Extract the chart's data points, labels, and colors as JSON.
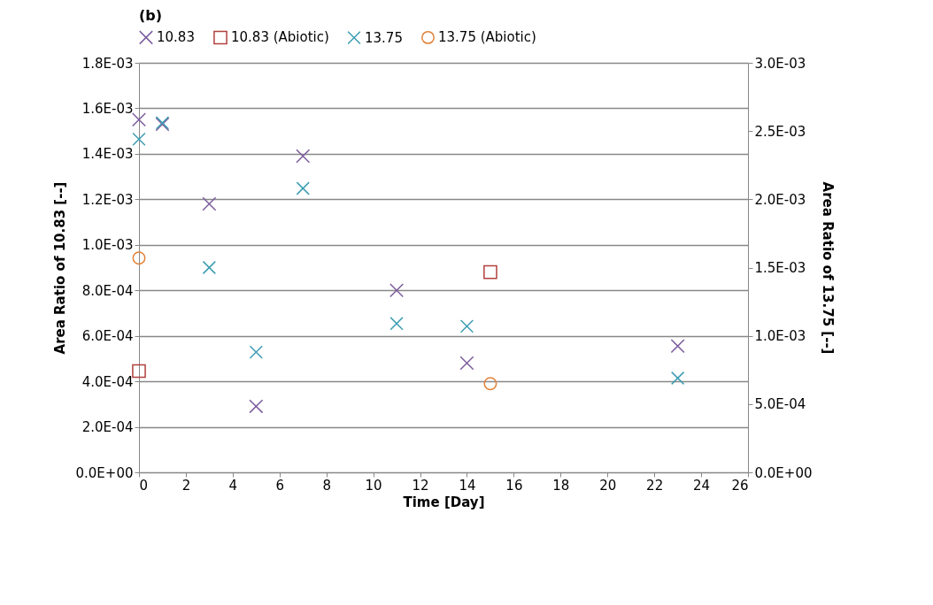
{
  "chart_data": {
    "type": "scatter",
    "title": "(b)",
    "xlabel": "Time [Day]",
    "ylabel": "Area Ratio of 10.83 [--]",
    "y2label": "Area Ratio of 13.75 [--]",
    "xlim": [
      0,
      26
    ],
    "xticks": [
      0,
      2,
      4,
      6,
      8,
      10,
      12,
      14,
      16,
      18,
      20,
      22,
      24,
      26
    ],
    "ylim": [
      0,
      0.0018
    ],
    "yticks": [
      {
        "value": 0,
        "label": "0.0E+00"
      },
      {
        "value": 0.0002,
        "label": "2.0E-04"
      },
      {
        "value": 0.0004,
        "label": "4.0E-04"
      },
      {
        "value": 0.0006,
        "label": "6.0E-04"
      },
      {
        "value": 0.0008,
        "label": "8.0E-04"
      },
      {
        "value": 0.001,
        "label": "1.0E-03"
      },
      {
        "value": 0.0012,
        "label": "1.2E-03"
      },
      {
        "value": 0.0014,
        "label": "1.4E-03"
      },
      {
        "value": 0.0016,
        "label": "1.6E-03"
      },
      {
        "value": 0.0018,
        "label": "1.8E-03"
      }
    ],
    "y2lim": [
      0,
      0.003
    ],
    "y2ticks": [
      {
        "value": 0,
        "label": "0.0E+00"
      },
      {
        "value": 0.0005,
        "label": "5.0E-04"
      },
      {
        "value": 0.001,
        "label": "1.0E-03"
      },
      {
        "value": 0.0015,
        "label": "1.5E-03"
      },
      {
        "value": 0.002,
        "label": "2.0E-03"
      },
      {
        "value": 0.0025,
        "label": "2.5E-03"
      },
      {
        "value": 0.003,
        "label": "3.0E-03"
      }
    ],
    "grid": "y",
    "legend": "top",
    "series": [
      {
        "name": "10.83",
        "color": "#7b5c9c",
        "marker": "cross",
        "axis": "y",
        "x": [
          0,
          1,
          3,
          5,
          7,
          11,
          14,
          23
        ],
        "values": [
          0.00155,
          0.00153,
          0.00118,
          0.00029,
          0.00139,
          0.0008,
          0.00048,
          0.000555
        ]
      },
      {
        "name": "10.83 (Abiotic)",
        "color": "#b0413e",
        "marker": "square",
        "axis": "y",
        "x": [
          0,
          15
        ],
        "values": [
          0.000445,
          0.00088
        ]
      },
      {
        "name": "13.75",
        "color": "#3d9db2",
        "marker": "cross",
        "axis": "y2",
        "x": [
          0,
          1,
          3,
          5,
          7,
          11,
          14,
          23
        ],
        "values": [
          0.00244,
          0.00256,
          0.0015,
          0.00088,
          0.00208,
          0.00109,
          0.00107,
          0.00069
        ]
      },
      {
        "name": "13.75 (Abiotic)",
        "color": "#e0823a",
        "marker": "circle",
        "axis": "y2",
        "x": [
          0,
          15
        ],
        "values": [
          0.00157,
          0.00065
        ]
      }
    ]
  }
}
